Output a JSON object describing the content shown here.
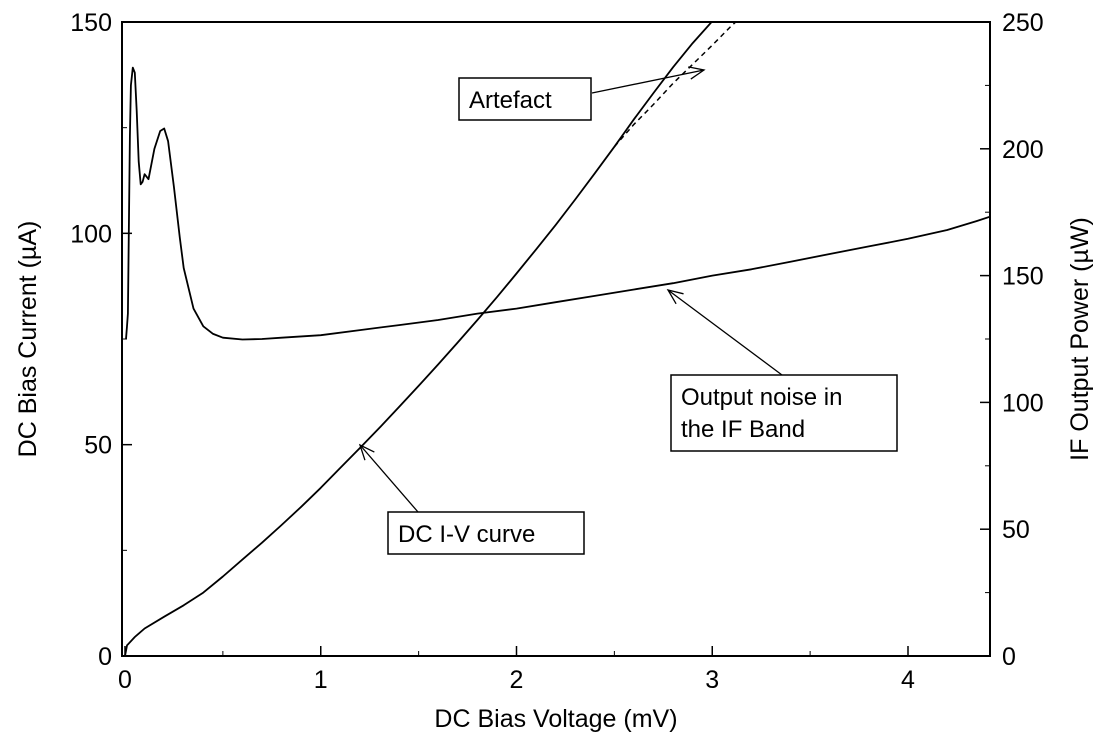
{
  "chart_data": {
    "type": "line",
    "xlabel": "DC Bias Voltage (mV)",
    "ylabel": "DC Bias Current (µA)",
    "y2label": "IF Output Power (µW)",
    "xlim": [
      0,
      4.45
    ],
    "ylim": [
      0,
      150
    ],
    "y2lim": [
      0,
      250
    ],
    "x_ticks": [
      0,
      1,
      2,
      3,
      4
    ],
    "y_ticks": [
      0,
      50,
      100,
      150
    ],
    "y2_ticks": [
      0,
      50,
      100,
      150,
      200,
      250
    ],
    "grid": false,
    "legend": "none",
    "series": [
      {
        "axis": "left",
        "style": "solid",
        "points": [
          [
            0,
            0
          ],
          [
            0.01,
            2.5
          ],
          [
            0.05,
            4.5
          ],
          [
            0.1,
            6.5
          ],
          [
            0.2,
            9.3
          ],
          [
            0.3,
            12
          ],
          [
            0.4,
            15
          ],
          [
            0.5,
            18.8
          ],
          [
            0.6,
            22.8
          ],
          [
            0.7,
            26.8
          ],
          [
            0.8,
            31
          ],
          [
            0.9,
            35.3
          ],
          [
            1.0,
            39.8
          ],
          [
            1.1,
            44.5
          ],
          [
            1.2,
            49.2
          ],
          [
            1.3,
            54
          ],
          [
            1.4,
            58.9
          ],
          [
            1.5,
            63.9
          ],
          [
            1.6,
            69
          ],
          [
            1.7,
            74.2
          ],
          [
            1.8,
            79.5
          ],
          [
            1.9,
            84.9
          ],
          [
            2.0,
            90.5
          ],
          [
            2.1,
            96.2
          ],
          [
            2.2,
            102
          ],
          [
            2.3,
            108
          ],
          [
            2.4,
            114.2
          ],
          [
            2.5,
            120.5
          ],
          [
            2.6,
            127
          ],
          [
            2.7,
            133.2
          ],
          [
            2.8,
            139.3
          ],
          [
            2.9,
            145
          ],
          [
            3.0,
            150.2
          ],
          [
            3.1,
            155.5
          ],
          [
            3.2,
            160.5
          ]
        ]
      },
      {
        "axis": "left",
        "style": "dashed",
        "points": [
          [
            2.5,
            120.5
          ],
          [
            2.6,
            125.8
          ],
          [
            2.7,
            130.5
          ],
          [
            2.8,
            135.5
          ],
          [
            2.9,
            140
          ],
          [
            3.0,
            144.5
          ],
          [
            3.1,
            149.2
          ],
          [
            3.2,
            153.2
          ],
          [
            3.3,
            157.5
          ],
          [
            3.4,
            162
          ],
          [
            3.48,
            165.5
          ]
        ]
      },
      {
        "axis": "right",
        "style": "solid",
        "points": [
          [
            0.005,
            125
          ],
          [
            0.01,
            130
          ],
          [
            0.015,
            135
          ],
          [
            0.02,
            170
          ],
          [
            0.025,
            205
          ],
          [
            0.03,
            225
          ],
          [
            0.04,
            232
          ],
          [
            0.05,
            230
          ],
          [
            0.06,
            215
          ],
          [
            0.07,
            195
          ],
          [
            0.08,
            186
          ],
          [
            0.09,
            187
          ],
          [
            0.1,
            190
          ],
          [
            0.12,
            188
          ],
          [
            0.15,
            200
          ],
          [
            0.18,
            207
          ],
          [
            0.2,
            208
          ],
          [
            0.22,
            203
          ],
          [
            0.25,
            185
          ],
          [
            0.28,
            165
          ],
          [
            0.3,
            153
          ],
          [
            0.35,
            137
          ],
          [
            0.4,
            130
          ],
          [
            0.45,
            127
          ],
          [
            0.5,
            125.5
          ],
          [
            0.6,
            124.8
          ],
          [
            0.7,
            125
          ],
          [
            0.8,
            125.5
          ],
          [
            1.0,
            126.5
          ],
          [
            1.2,
            128.5
          ],
          [
            1.4,
            130.5
          ],
          [
            1.6,
            132.5
          ],
          [
            1.8,
            135
          ],
          [
            2.0,
            137
          ],
          [
            2.2,
            139.5
          ],
          [
            2.4,
            142
          ],
          [
            2.6,
            144.5
          ],
          [
            2.8,
            147
          ],
          [
            3.0,
            150
          ],
          [
            3.2,
            152.5
          ],
          [
            3.4,
            155.5
          ],
          [
            3.6,
            158.5
          ],
          [
            3.8,
            161.5
          ],
          [
            4.0,
            164.5
          ],
          [
            4.2,
            168
          ],
          [
            4.35,
            171.5
          ],
          [
            4.45,
            174
          ]
        ]
      }
    ],
    "annotations": [
      {
        "key": "artefact",
        "lines": [
          "Artefact"
        ],
        "point": [
          3.0,
          138
        ]
      },
      {
        "key": "output_noise",
        "lines": [
          "Output noise in",
          "the IF Band"
        ],
        "point": [
          2.8,
          147
        ]
      },
      {
        "key": "dc_iv",
        "lines": [
          "DC I-V curve"
        ],
        "point": [
          1.2,
          49
        ]
      }
    ]
  }
}
